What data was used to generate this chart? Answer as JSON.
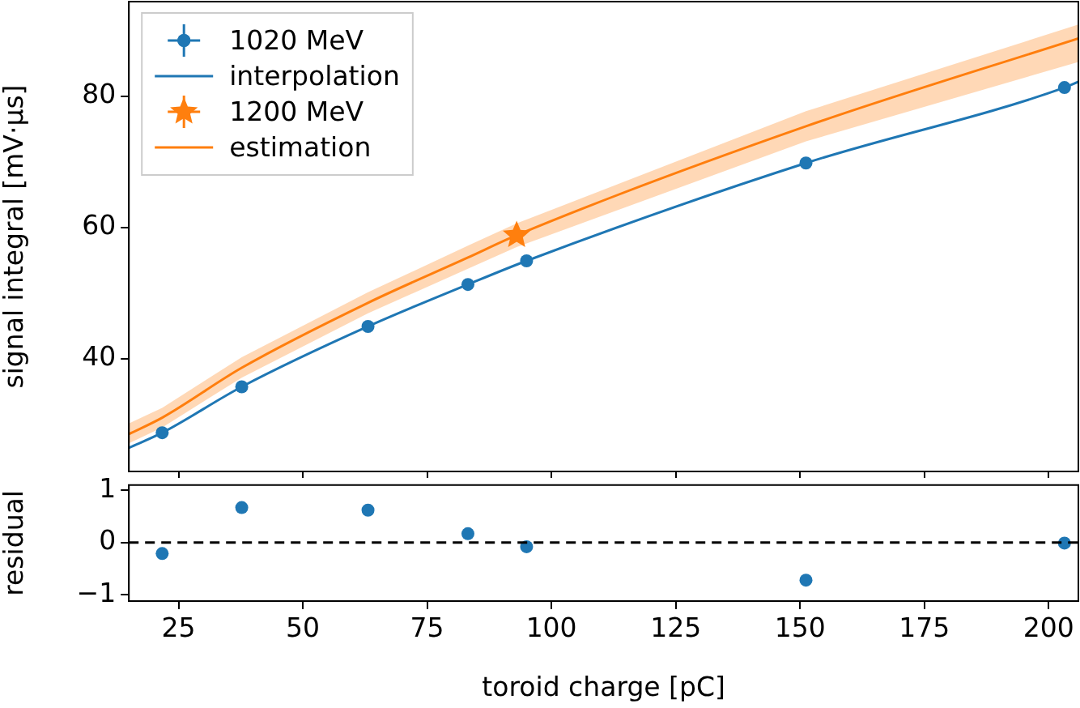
{
  "chart_data": [
    {
      "type": "scatter",
      "ylabel": "signal integral [mV·µs]",
      "xlim": [
        15,
        206
      ],
      "xticks": [
        25,
        50,
        75,
        100,
        125,
        150,
        175,
        200
      ],
      "ylim": [
        22.8,
        94.4
      ],
      "yticks": [
        40,
        60,
        80
      ],
      "tick_labels": "y",
      "legend": "top left",
      "grid": false,
      "series": [
        {
          "name": "1020 MeV",
          "type": "scatter",
          "marker": "circle",
          "color": "#1f77b4",
          "x": [
            21.7,
            37.7,
            63.1,
            83.2,
            95.0,
            151.2,
            203.2
          ],
          "values": [
            28.7,
            35.7,
            44.9,
            51.3,
            54.9,
            69.8,
            81.3
          ]
        },
        {
          "name": "interpolation",
          "type": "line",
          "marker": "none",
          "color": "#1f77b4",
          "x": [
            15,
            21.7,
            37.7,
            63.1,
            83.2,
            95.0,
            151.2,
            203.2,
            206
          ],
          "values": [
            26.4,
            28.7,
            35.7,
            44.9,
            51.3,
            54.9,
            69.8,
            81.3,
            82.2
          ]
        },
        {
          "name": "1200 MeV",
          "type": "scatter",
          "marker": "star",
          "color": "#ff7f0e",
          "x": [
            93.0
          ],
          "values": [
            58.8
          ]
        },
        {
          "name": "estimation",
          "type": "line",
          "marker": "none",
          "color": "#ff7f0e",
          "x": [
            15,
            21.7,
            37.7,
            63.1,
            83.2,
            93.0,
            151.2,
            206
          ],
          "values": [
            28.5,
            31.0,
            38.6,
            48.5,
            55.4,
            58.8,
            75.4,
            88.8
          ],
          "lower": [
            27.1,
            29.5,
            37.1,
            46.9,
            53.7,
            57.0,
            73.1,
            85.2
          ],
          "upper": [
            30.1,
            32.5,
            40.2,
            50.1,
            57.2,
            60.6,
            77.7,
            90.9
          ]
        }
      ]
    },
    {
      "type": "scatter",
      "xlabel": "toroid charge [pC]",
      "ylabel": "residual",
      "xlim": [
        15,
        206
      ],
      "xticks": [
        25,
        50,
        75,
        100,
        125,
        150,
        175,
        200
      ],
      "ylim": [
        -1.12,
        1.1
      ],
      "yticks": [
        {
          "value": -1,
          "label": "−1"
        },
        0,
        1
      ],
      "grid": false,
      "marker": "circle",
      "color": "#1f77b4",
      "x": [
        21.7,
        37.7,
        63.1,
        83.2,
        95.0,
        151.2,
        203.2
      ],
      "values": [
        -0.21,
        0.67,
        0.62,
        0.17,
        -0.08,
        -0.72,
        -0.01
      ],
      "ref_lines": [
        {
          "axis": "y",
          "value": 0,
          "color": "#000000",
          "line_style": "dashed"
        }
      ]
    }
  ]
}
